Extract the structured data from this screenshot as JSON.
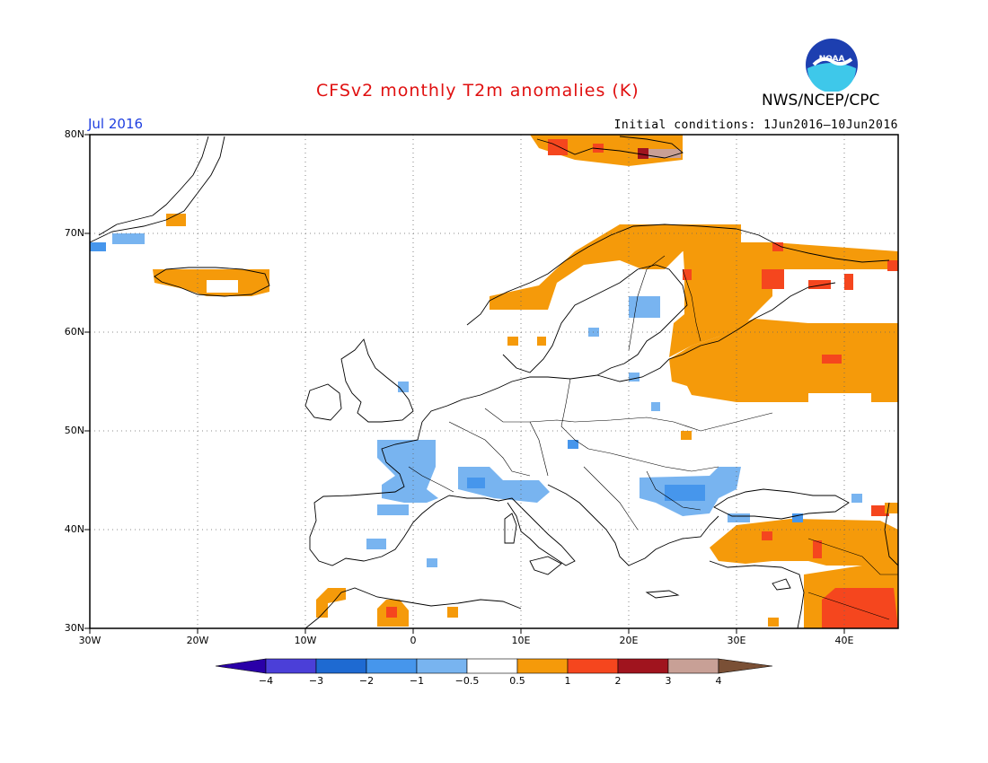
{
  "title": "CFSv2 monthly T2m anomalies (K)",
  "agency": "NWS/NCEP/CPC",
  "logo_text": "NOAA",
  "valid_month": "Jul 2016",
  "initial_conditions": "Initial conditions: 1Jun2016–10Jun2016",
  "map": {
    "projection": "lat-lon",
    "lon_range": [
      -30,
      45
    ],
    "lat_range": [
      30,
      80
    ],
    "lat_labels": [
      "80N",
      "70N",
      "60N",
      "50N",
      "40N",
      "30N"
    ],
    "lon_labels": [
      "30W",
      "20W",
      "10W",
      "0",
      "10E",
      "20E",
      "30E",
      "40E"
    ],
    "gridlines": "dotted"
  },
  "colorbar": {
    "labels": [
      "−4",
      "−3",
      "−2",
      "−1",
      "−0.5",
      "0.5",
      "1",
      "2",
      "3",
      "4"
    ],
    "colors": [
      "#2a00a8",
      "#4b3fd8",
      "#1e6ad2",
      "#4696ec",
      "#78b4f0",
      "#ffffff",
      "#f59a0a",
      "#f5461e",
      "#a0141e",
      "#c8a096",
      "#7a5036"
    ],
    "extend": "both"
  },
  "anomaly_regions": [
    {
      "name": "Scandinavia north coast",
      "category": "0.5 to 1"
    },
    {
      "name": "Western Russia / Baltics",
      "category": "0.5 to 1"
    },
    {
      "name": "Kola / White Sea",
      "category": "1 to 2"
    },
    {
      "name": "Svalbard",
      "category": "1 to 3"
    },
    {
      "name": "Iceland",
      "category": "0.5 to 1"
    },
    {
      "name": "Turkey / Caucasus",
      "category": "0.5 to 1"
    },
    {
      "name": "Middle East",
      "category": "1 to 2"
    },
    {
      "name": "France / Northern Spain",
      "category": "-1 to -0.5"
    },
    {
      "name": "Northern Italy",
      "category": "-1 to -0.5"
    },
    {
      "name": "Balkans / Black Sea",
      "category": "-1 to -0.5"
    },
    {
      "name": "Morocco / Algeria",
      "category": "0.5 to 2"
    }
  ]
}
